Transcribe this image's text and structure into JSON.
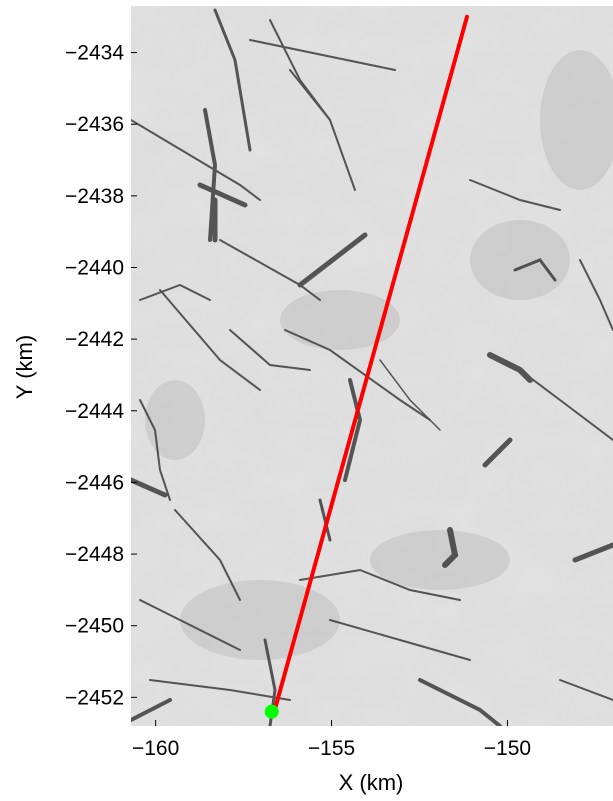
{
  "chart_data": {
    "type": "scatter",
    "title": "",
    "xlabel": "X (km)",
    "ylabel": "Y (km)",
    "xlim": [
      -160.7,
      -147.0
    ],
    "ylim": [
      -2452.8,
      -2432.7
    ],
    "x_ticks": [
      -160,
      -155,
      -150
    ],
    "x_tick_labels": [
      "−160",
      "−155",
      "−150"
    ],
    "y_ticks": [
      -2434,
      -2436,
      -2438,
      -2440,
      -2442,
      -2444,
      -2446,
      -2448,
      -2450,
      -2452
    ],
    "y_tick_labels": [
      "−2434",
      "−2436",
      "−2438",
      "−2440",
      "−2442",
      "−2444",
      "−2446",
      "−2448",
      "−2450",
      "−2452"
    ],
    "grid": false,
    "background": "grayscale sea-ice satellite image",
    "series": [
      {
        "kind": "track-line",
        "color": "#ff0000",
        "x": [
          -156.6,
          -151.15
        ],
        "y": [
          -2452.3,
          -2433.0
        ]
      },
      {
        "kind": "start-marker",
        "color": "#00ff00",
        "x": [
          -156.7
        ],
        "y": [
          -2452.4
        ]
      }
    ]
  }
}
